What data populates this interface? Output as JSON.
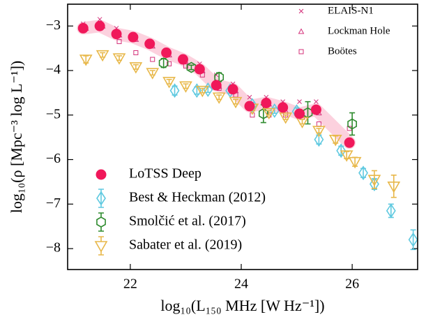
{
  "chart_data": {
    "type": "scatter",
    "xlabel": "log₁₀(L₁₅₀ MHz [W Hz⁻¹])",
    "ylabel": "log₁₀(ρ [Mpc⁻³ log L⁻¹])",
    "xlim": [
      20.87,
      27.18
    ],
    "ylim": [
      -8.47,
      -2.51
    ],
    "xticks": [
      22,
      24,
      26
    ],
    "yticks": [
      {
        "value": -3,
        "label": "−3"
      },
      {
        "value": -4,
        "label": "−4"
      },
      {
        "value": -5,
        "label": "−5"
      },
      {
        "value": -6,
        "label": "−6"
      },
      {
        "value": -7,
        "label": "−7"
      },
      {
        "value": -8,
        "label": "−8"
      }
    ],
    "series": [
      {
        "name": "LoTSS Deep",
        "color": "#f0185a",
        "marker": "circle",
        "legend_loc": "lower left",
        "band": true,
        "x": [
          21.15,
          21.45,
          21.75,
          22.05,
          22.35,
          22.65,
          22.95,
          23.25,
          23.55,
          23.85,
          24.15,
          24.45,
          24.75,
          25.05,
          25.35,
          25.95
        ],
        "values": [
          -3.05,
          -3.0,
          -3.18,
          -3.25,
          -3.4,
          -3.6,
          -3.75,
          -3.97,
          -4.33,
          -4.42,
          -4.8,
          -4.73,
          -4.83,
          -4.97,
          -4.88,
          -5.62
        ]
      },
      {
        "name": "Best & Heckman (2012)",
        "color": "#5fc9e0",
        "marker": "diamond",
        "legend_loc": "lower left",
        "x": [
          22.8,
          23.2,
          23.4,
          23.8,
          24.2,
          24.6,
          25.0,
          25.4,
          25.8,
          26.2,
          26.4,
          26.7,
          27.1
        ],
        "values": [
          -4.45,
          -4.45,
          -4.43,
          -4.45,
          -4.78,
          -4.9,
          -4.92,
          -5.55,
          -5.8,
          -6.3,
          -6.55,
          -7.15,
          -7.8
        ],
        "errors": [
          0.1,
          0.08,
          0.06,
          0.06,
          0.06,
          0.06,
          0.08,
          0.1,
          0.1,
          0.1,
          0.12,
          0.15,
          0.22
        ]
      },
      {
        "name": "Smolčić et al. (2017)",
        "color": "#2e8b2e",
        "marker": "hexagon",
        "legend_loc": "lower left",
        "x": [
          22.6,
          23.1,
          23.6,
          24.4,
          25.2,
          26.0
        ],
        "values": [
          -3.83,
          -3.93,
          -4.15,
          -4.97,
          -4.95,
          -5.2
        ],
        "errors": [
          0.1,
          0.05,
          0.1,
          0.2,
          0.25,
          0.25
        ]
      },
      {
        "name": "Sabater et al. (2019)",
        "color": "#e8b84a",
        "marker": "triangle_down",
        "legend_loc": "lower left",
        "x": [
          21.2,
          21.5,
          21.8,
          22.1,
          22.4,
          22.7,
          23.0,
          23.3,
          23.6,
          23.9,
          24.2,
          24.5,
          24.8,
          25.1,
          25.4,
          25.7,
          25.9,
          26.05,
          26.4,
          26.75
        ],
        "values": [
          -3.75,
          -3.65,
          -3.72,
          -3.92,
          -4.05,
          -4.25,
          -4.35,
          -4.45,
          -4.6,
          -4.7,
          -4.85,
          -4.95,
          -5.05,
          -5.15,
          -5.35,
          -5.55,
          -5.9,
          -6.05,
          -6.45,
          -6.6
        ],
        "errors": [
          0.08,
          0.05,
          0.05,
          0.05,
          0.05,
          0.05,
          0.05,
          0.05,
          0.05,
          0.05,
          0.05,
          0.05,
          0.05,
          0.05,
          0.05,
          0.08,
          0.08,
          0.1,
          0.2,
          0.25
        ]
      },
      {
        "name": "ELAIS-N1",
        "color": "#d4307a",
        "marker": "x",
        "legend_loc": "upper right",
        "x": [
          21.15,
          21.45,
          21.75,
          22.05,
          22.35,
          22.65,
          22.95,
          23.25,
          23.55,
          23.85,
          24.15,
          24.45,
          24.75,
          25.05,
          25.35
        ],
        "values": [
          -2.95,
          -2.85,
          -3.05,
          -3.25,
          -3.35,
          -3.55,
          -3.7,
          -3.85,
          -4.1,
          -4.3,
          -4.6,
          -4.6,
          -4.7,
          -4.7,
          -4.7
        ]
      },
      {
        "name": "Lockman Hole",
        "color": "#d4307a",
        "marker": "triangle",
        "legend_loc": "upper right",
        "x": [
          21.2,
          21.5,
          21.8,
          22.1,
          22.4,
          22.7,
          23.0,
          23.3,
          23.6,
          23.9,
          24.2,
          24.5,
          24.8,
          25.1,
          25.4
        ],
        "values": [
          -3.05,
          -3.0,
          -3.2,
          -3.3,
          -3.45,
          -3.65,
          -3.8,
          -4.0,
          -4.35,
          -4.45,
          -4.85,
          -4.75,
          -4.9,
          -5.0,
          -4.95
        ]
      },
      {
        "name": "Boötes",
        "color": "#d4307a",
        "marker": "square",
        "legend_loc": "upper right",
        "x": [
          21.8,
          22.1,
          22.4,
          22.7,
          23.0,
          23.3,
          23.6,
          23.9,
          24.2,
          24.5,
          24.8,
          25.1,
          25.4,
          25.95
        ],
        "values": [
          -3.35,
          -3.6,
          -3.75,
          -3.85,
          -3.9,
          -4.1,
          -4.4,
          -4.55,
          -5.0,
          -5.0,
          -5.0,
          -5.05,
          -5.2,
          -5.3
        ]
      }
    ]
  }
}
